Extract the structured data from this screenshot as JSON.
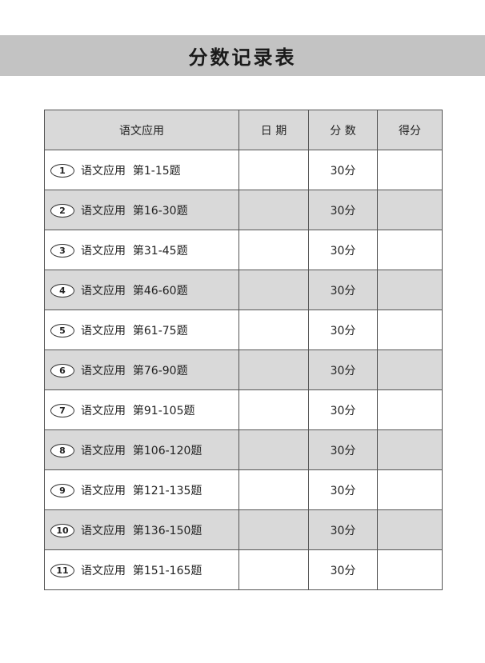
{
  "title": "分数记录表",
  "headers": [
    "语文应用",
    "日 期",
    "分 数",
    "得分"
  ],
  "rows": [
    {
      "num": "1",
      "name": "语文应用  第1-15题",
      "score": "30分"
    },
    {
      "num": "2",
      "name": "语文应用  第16-30题",
      "score": "30分"
    },
    {
      "num": "3",
      "name": "语文应用  第31-45题",
      "score": "30分"
    },
    {
      "num": "4",
      "name": "语文应用  第46-60题",
      "score": "30分"
    },
    {
      "num": "5",
      "name": "语文应用  第61-75题",
      "score": "30分"
    },
    {
      "num": "6",
      "name": "语文应用  第76-90题",
      "score": "30分"
    },
    {
      "num": "7",
      "name": "语文应用  第91-105题",
      "score": "30分"
    },
    {
      "num": "8",
      "name": "语文应用  第106-120题",
      "score": "30分"
    },
    {
      "num": "9",
      "name": "语文应用  第121-135题",
      "score": "30分"
    },
    {
      "num": "10",
      "name": "语文应用  第136-150题",
      "score": "30分"
    },
    {
      "num": "11",
      "name": "语文应用  第151-165题",
      "score": "30分"
    }
  ]
}
